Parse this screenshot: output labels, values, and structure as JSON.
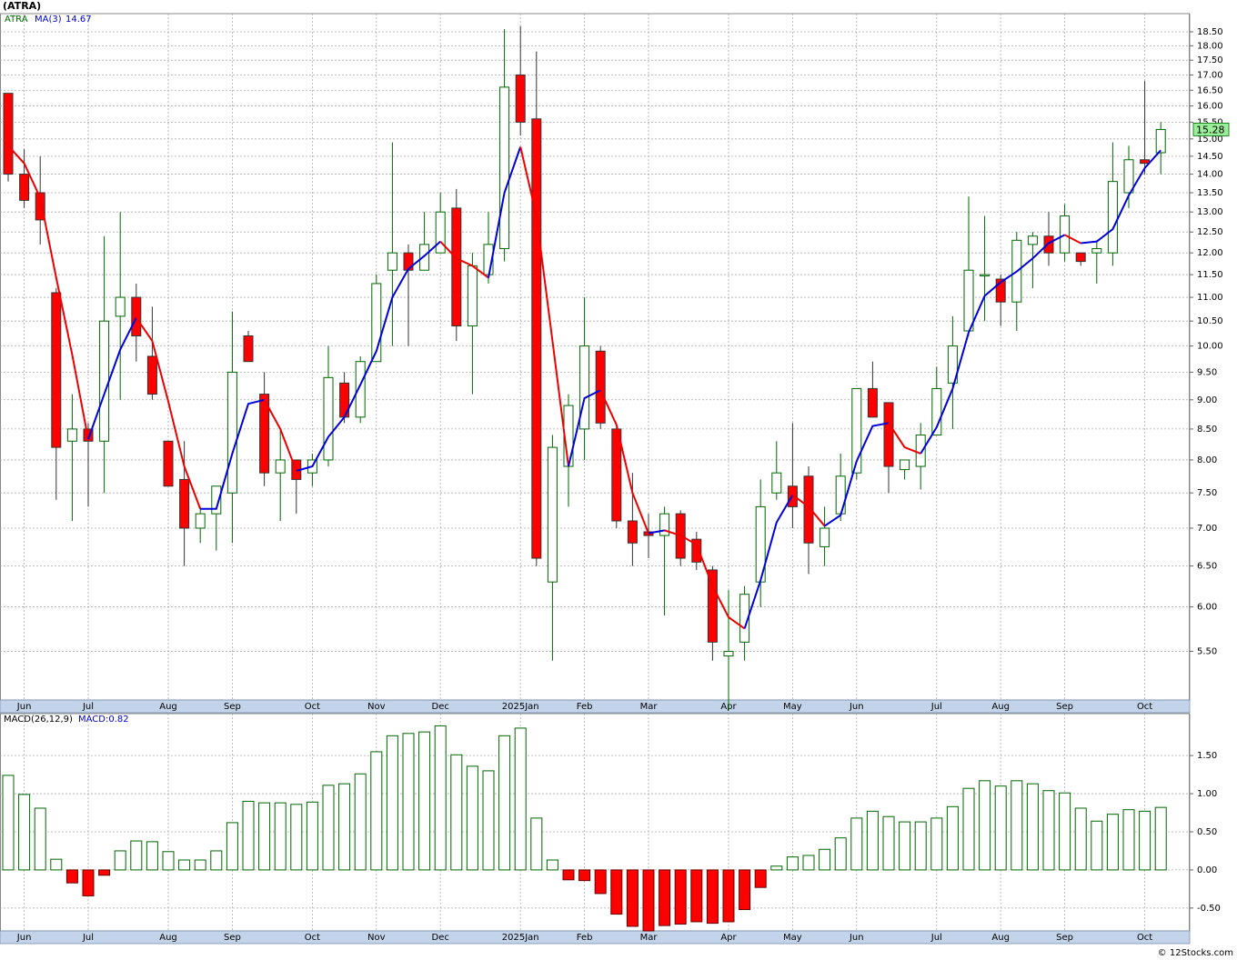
{
  "chart_data": [
    {
      "type": "candlestick",
      "title": "(ATRA)",
      "categories": [
        null,
        "Jun",
        null,
        null,
        null,
        "Jul",
        null,
        null,
        null,
        null,
        "Aug",
        null,
        null,
        null,
        "Sep",
        null,
        null,
        null,
        null,
        "Oct",
        null,
        null,
        null,
        "Nov",
        null,
        null,
        null,
        "Dec",
        null,
        null,
        null,
        null,
        "2025Jan",
        null,
        null,
        null,
        "Feb",
        null,
        null,
        null,
        "Mar",
        null,
        null,
        null,
        null,
        "Apr",
        null,
        null,
        null,
        "May",
        null,
        null,
        null,
        "Jun",
        null,
        null,
        null,
        null,
        "Jul",
        null,
        null,
        null,
        "Aug",
        null,
        null,
        null,
        "Sep",
        null,
        null,
        null,
        null,
        "Oct",
        null
      ],
      "series": [
        {
          "name": "ATRA",
          "color": "#006600",
          "down_color": "#ff0000",
          "open": [
            16.4,
            14.0,
            13.5,
            11.1,
            8.3,
            8.5,
            8.3,
            10.6,
            11.0,
            9.8,
            8.3,
            7.7,
            7.0,
            7.2,
            7.5,
            10.2,
            9.1,
            7.8,
            8.0,
            7.8,
            8.0,
            9.3,
            8.7,
            9.7,
            11.6,
            12.0,
            11.6,
            12.0,
            13.1,
            10.4,
            11.5,
            12.1,
            17.0,
            15.6,
            6.3,
            7.9,
            8.5,
            9.9,
            8.5,
            7.1,
            6.95,
            6.9,
            7.2,
            6.85,
            6.45,
            5.45,
            5.6,
            6.3,
            7.5,
            7.6,
            7.75,
            6.75,
            7.2,
            7.8,
            9.2,
            8.95,
            7.85,
            7.9,
            8.4,
            9.3,
            10.3,
            11.5,
            11.4,
            10.9,
            12.2,
            12.4,
            12.0,
            12.0,
            12.0,
            12.0,
            13.5,
            14.4,
            14.6
          ],
          "high": [
            16.4,
            14.7,
            14.5,
            11.2,
            9.1,
            8.6,
            12.4,
            13.0,
            11.3,
            10.8,
            8.3,
            8.3,
            7.3,
            7.6,
            10.7,
            10.3,
            9.5,
            8.5,
            8.0,
            8.1,
            10.0,
            9.5,
            9.8,
            11.5,
            14.9,
            12.2,
            13.0,
            13.5,
            13.6,
            12.0,
            13.0,
            18.6,
            18.7,
            17.8,
            8.4,
            9.1,
            11.0,
            10.0,
            8.6,
            7.8,
            7.2,
            7.3,
            7.25,
            6.95,
            6.5,
            6.2,
            6.25,
            7.7,
            8.3,
            8.6,
            7.9,
            7.3,
            8.1,
            9.2,
            9.7,
            8.95,
            8.0,
            8.6,
            9.6,
            10.6,
            13.4,
            12.9,
            11.5,
            12.5,
            12.5,
            13.0,
            13.2,
            12.0,
            12.3,
            14.9,
            14.8,
            16.8,
            15.5
          ],
          "low": [
            13.8,
            13.1,
            12.2,
            7.4,
            7.1,
            7.3,
            7.5,
            9.0,
            9.7,
            9.0,
            7.6,
            6.5,
            6.8,
            6.7,
            6.8,
            9.7,
            7.6,
            7.1,
            7.2,
            7.6,
            7.9,
            8.6,
            8.6,
            9.7,
            10.0,
            10.0,
            11.6,
            12.0,
            10.1,
            9.1,
            11.3,
            11.8,
            15.1,
            6.5,
            5.4,
            7.3,
            8.0,
            8.5,
            7.0,
            6.5,
            6.6,
            5.9,
            6.5,
            6.45,
            5.4,
            4.9,
            5.4,
            6.0,
            7.4,
            7.0,
            6.4,
            6.5,
            7.1,
            7.7,
            8.8,
            7.5,
            7.7,
            7.55,
            8.4,
            8.5,
            10.2,
            10.5,
            10.4,
            10.3,
            11.2,
            11.7,
            11.8,
            11.7,
            11.3,
            11.7,
            13.1,
            14.0,
            14.0
          ],
          "close": [
            14.0,
            13.3,
            12.8,
            8.2,
            8.5,
            8.3,
            10.5,
            11.0,
            10.2,
            9.1,
            7.6,
            7.0,
            7.2,
            7.6,
            9.5,
            9.7,
            7.8,
            8.0,
            7.7,
            8.0,
            9.4,
            8.7,
            9.7,
            11.3,
            12.0,
            11.6,
            12.2,
            13.0,
            10.4,
            11.7,
            12.2,
            16.6,
            15.5,
            6.6,
            8.2,
            8.9,
            10.0,
            8.6,
            7.1,
            6.8,
            6.9,
            7.2,
            6.6,
            6.55,
            5.6,
            5.5,
            6.15,
            7.3,
            7.8,
            7.3,
            6.8,
            7.0,
            7.75,
            9.2,
            8.7,
            7.9,
            8.0,
            8.4,
            9.2,
            10.0,
            11.6,
            11.5,
            10.9,
            12.3,
            12.4,
            12.0,
            12.9,
            11.8,
            12.1,
            13.8,
            14.4,
            14.3,
            15.28
          ]
        },
        {
          "name": "MA(3)",
          "color": "#0000dd",
          "down_color": "#ee0000",
          "values": [
            14.8,
            14.3,
            13.37,
            11.43,
            9.83,
            8.33,
            9.1,
            9.93,
            10.57,
            10.1,
            8.97,
            7.9,
            7.27,
            7.27,
            8.1,
            8.93,
            9.0,
            8.5,
            7.83,
            7.9,
            8.37,
            8.7,
            9.27,
            9.9,
            11.0,
            11.63,
            11.93,
            12.27,
            11.87,
            11.7,
            11.43,
            13.5,
            14.77,
            12.9,
            10.1,
            7.9,
            9.03,
            9.17,
            8.57,
            7.5,
            6.93,
            6.97,
            6.9,
            6.78,
            6.25,
            5.88,
            5.75,
            6.32,
            7.08,
            7.47,
            7.3,
            7.03,
            7.18,
            7.98,
            8.55,
            8.6,
            8.2,
            8.1,
            8.53,
            9.2,
            10.27,
            11.03,
            11.33,
            11.57,
            11.87,
            12.23,
            12.43,
            12.23,
            12.27,
            12.57,
            13.43,
            14.17,
            14.67
          ]
        }
      ],
      "ylim": [
        5.0,
        19.17
      ],
      "log_scale": true,
      "grid": true,
      "last_price_color": "#99ee99",
      "yticks": [
        {
          "value": 5.5,
          "label": "5.50"
        },
        {
          "value": 6.0,
          "label": "6.00"
        },
        {
          "value": 6.5,
          "label": "6.50"
        },
        {
          "value": 7.0,
          "label": "7.00"
        },
        {
          "value": 7.5,
          "label": "7.50"
        },
        {
          "value": 8.0,
          "label": "8.00"
        },
        {
          "value": 8.5,
          "label": "8.50"
        },
        {
          "value": 9.0,
          "label": "9.00"
        },
        {
          "value": 9.5,
          "label": "9.50"
        },
        {
          "value": 10.0,
          "label": "10.00"
        },
        {
          "value": 10.5,
          "label": "10.50"
        },
        {
          "value": 11.0,
          "label": "11.00"
        },
        {
          "value": 11.5,
          "label": "11.50"
        },
        {
          "value": 12.0,
          "label": "12.00"
        },
        {
          "value": 12.5,
          "label": "12.50"
        },
        {
          "value": 13.0,
          "label": "13.00"
        },
        {
          "value": 13.5,
          "label": "13.50"
        },
        {
          "value": 14.0,
          "label": "14.00"
        },
        {
          "value": 14.5,
          "label": "14.50"
        },
        {
          "value": 15.0,
          "label": "15.00"
        },
        {
          "value": 15.5,
          "label": "15.50"
        },
        {
          "value": 16.0,
          "label": "16.00"
        },
        {
          "value": 16.5,
          "label": "16.50"
        },
        {
          "value": 17.0,
          "label": "17.00"
        },
        {
          "value": 17.5,
          "label": "17.50"
        },
        {
          "value": 18.0,
          "label": "18.00"
        },
        {
          "value": 18.5,
          "label": "18.50"
        }
      ]
    },
    {
      "type": "macd_histogram",
      "title": "MACD(26,12,9)",
      "categories": [
        null,
        "Jun",
        null,
        null,
        null,
        "Jul",
        null,
        null,
        null,
        null,
        "Aug",
        null,
        null,
        null,
        "Sep",
        null,
        null,
        null,
        null,
        "Oct",
        null,
        null,
        null,
        "Nov",
        null,
        null,
        null,
        "Dec",
        null,
        null,
        null,
        null,
        "2025Jan",
        null,
        null,
        null,
        "Feb",
        null,
        null,
        null,
        "Mar",
        null,
        null,
        null,
        null,
        "Apr",
        null,
        null,
        null,
        "May",
        null,
        null,
        null,
        "Jun",
        null,
        null,
        null,
        null,
        "Jul",
        null,
        null,
        null,
        "Aug",
        null,
        null,
        null,
        "Sep",
        null,
        null,
        null,
        null,
        "Oct",
        null
      ],
      "series": [
        {
          "name": "MACD:0.82",
          "color": "#006600",
          "down_color": "#ff0000",
          "values": [
            1.24,
            0.99,
            0.81,
            0.14,
            -0.17,
            -0.34,
            -0.07,
            0.25,
            0.38,
            0.37,
            0.24,
            0.13,
            0.13,
            0.25,
            0.62,
            0.9,
            0.88,
            0.88,
            0.86,
            0.89,
            1.11,
            1.13,
            1.26,
            1.55,
            1.76,
            1.79,
            1.81,
            1.89,
            1.51,
            1.36,
            1.3,
            1.76,
            1.86,
            0.68,
            0.13,
            -0.13,
            -0.14,
            -0.31,
            -0.58,
            -0.74,
            -0.8,
            -0.73,
            -0.71,
            -0.68,
            -0.7,
            -0.68,
            -0.52,
            -0.23,
            0.05,
            0.17,
            0.19,
            0.27,
            0.42,
            0.68,
            0.77,
            0.7,
            0.63,
            0.63,
            0.68,
            0.83,
            1.07,
            1.17,
            1.1,
            1.17,
            1.13,
            1.04,
            1.01,
            0.81,
            0.64,
            0.73,
            0.79,
            0.77,
            0.82
          ]
        }
      ],
      "ylim": [
        -0.8,
        2.05
      ],
      "grid": true,
      "yticks": [
        {
          "value": -0.5,
          "label": "-0.50"
        },
        {
          "value": 0,
          "label": "0.00"
        },
        {
          "value": 0.5,
          "label": "0.50"
        },
        {
          "value": 1.0,
          "label": "1.00"
        },
        {
          "value": 1.5,
          "label": "1.50"
        }
      ]
    }
  ]
}
